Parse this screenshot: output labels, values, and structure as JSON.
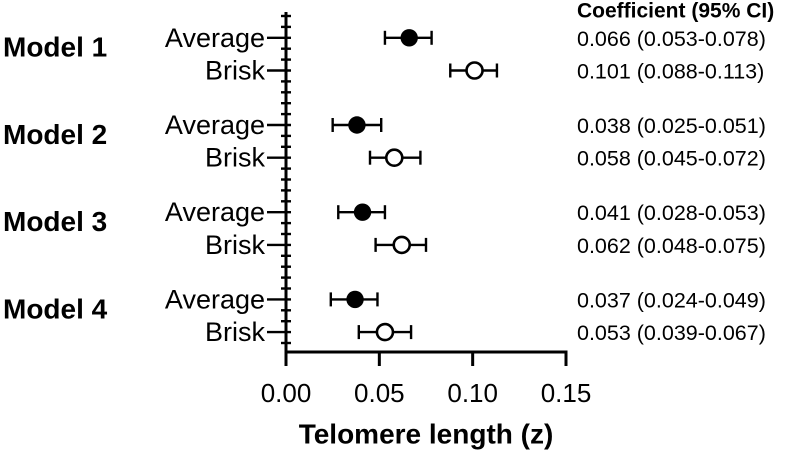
{
  "chart_data": {
    "type": "scatter",
    "variant": "forest-plot",
    "title": "",
    "xlabel": "Telomere length (z)",
    "ylabel": "",
    "right_column_header": "Coefficient (95% CI)",
    "xlim": [
      0,
      0.15
    ],
    "x_tick_values": [
      0,
      0.05,
      0.1,
      0.15
    ],
    "x_tick_labels": [
      "0.00",
      "0.05",
      "0.10",
      "0.15"
    ],
    "grid": "off",
    "marker_legend": {
      "filled": "Average",
      "open": "Brisk"
    },
    "colors": {
      "foreground": "#000000",
      "background": "#ffffff"
    },
    "groups": [
      {
        "model": "Model 1",
        "rows": [
          {
            "label": "Average",
            "marker": "filled",
            "coef": 0.066,
            "ci_low": 0.053,
            "ci_high": 0.078,
            "display": "0.066 (0.053-0.078)"
          },
          {
            "label": "Brisk",
            "marker": "open",
            "coef": 0.101,
            "ci_low": 0.088,
            "ci_high": 0.113,
            "display": "0.101 (0.088-0.113)"
          }
        ]
      },
      {
        "model": "Model 2",
        "rows": [
          {
            "label": "Average",
            "marker": "filled",
            "coef": 0.038,
            "ci_low": 0.025,
            "ci_high": 0.051,
            "display": "0.038 (0.025-0.051)"
          },
          {
            "label": "Brisk",
            "marker": "open",
            "coef": 0.058,
            "ci_low": 0.045,
            "ci_high": 0.072,
            "display": "0.058 (0.045-0.072)"
          }
        ]
      },
      {
        "model": "Model 3",
        "rows": [
          {
            "label": "Average",
            "marker": "filled",
            "coef": 0.041,
            "ci_low": 0.028,
            "ci_high": 0.053,
            "display": "0.041 (0.028-0.053)"
          },
          {
            "label": "Brisk",
            "marker": "open",
            "coef": 0.062,
            "ci_low": 0.048,
            "ci_high": 0.075,
            "display": "0.062 (0.048-0.075)"
          }
        ]
      },
      {
        "model": "Model 4",
        "rows": [
          {
            "label": "Average",
            "marker": "filled",
            "coef": 0.037,
            "ci_low": 0.024,
            "ci_high": 0.049,
            "display": "0.037 (0.024-0.049)"
          },
          {
            "label": "Brisk",
            "marker": "open",
            "coef": 0.053,
            "ci_low": 0.039,
            "ci_high": 0.067,
            "display": "0.053 (0.039-0.067)"
          }
        ]
      }
    ]
  }
}
